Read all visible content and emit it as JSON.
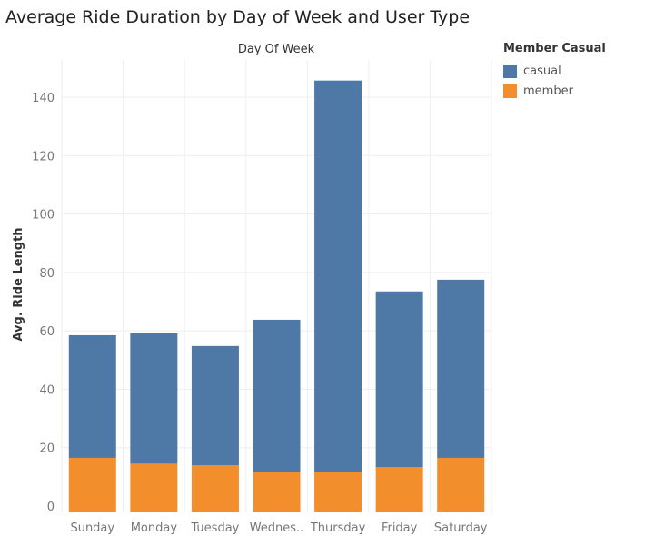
{
  "title": "Average Ride Duration by Day of Week and User Type",
  "colors": {
    "casual": "#4e79a7",
    "member": "#f28e2b",
    "grid": "#eeeeee",
    "axis_text": "#777777"
  },
  "chart_data": {
    "type": "bar",
    "stacked": true,
    "column_header": "Day Of Week",
    "ylabel": "Avg. Ride Length",
    "xlabel": "",
    "ylim": [
      0,
      150
    ],
    "yticks": [
      0,
      20,
      40,
      60,
      80,
      100,
      120,
      140
    ],
    "grid": true,
    "legend_position": "right",
    "categories": [
      "Sunday",
      "Monday",
      "Tuesday",
      "Wednes..",
      "Thursday",
      "Friday",
      "Saturday"
    ],
    "series": [
      {
        "name": "member",
        "values": [
          16.5,
          14.5,
          14,
          11.5,
          11.5,
          13.3,
          16.5
        ]
      },
      {
        "name": "casual",
        "values": [
          42,
          44.7,
          40.8,
          52.3,
          134.2,
          60.2,
          61
        ]
      }
    ]
  },
  "legend": {
    "title": "Member Casual",
    "items": [
      {
        "label": "casual",
        "color": "#4e79a7"
      },
      {
        "label": "member",
        "color": "#f28e2b"
      }
    ]
  }
}
